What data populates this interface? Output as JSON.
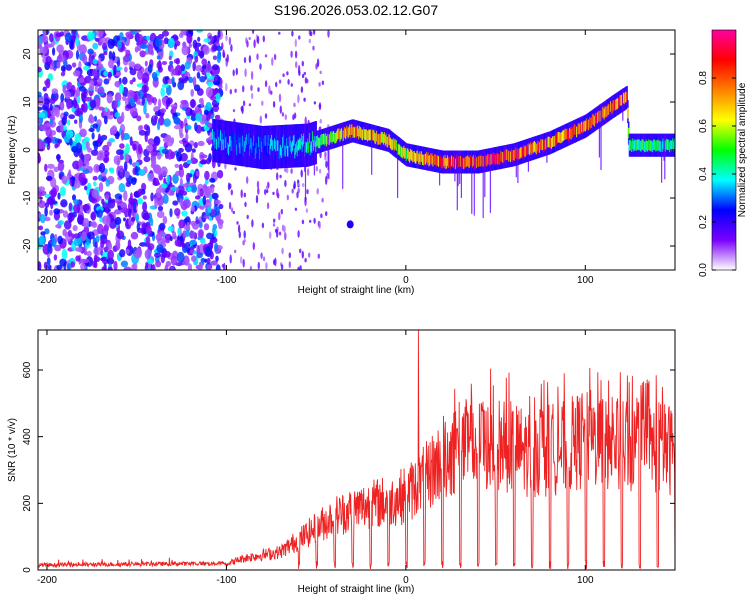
{
  "title": "S196.2026.053.02.12.G07",
  "chart_data": [
    {
      "type": "heatmap",
      "title": "S196.2026.053.02.12.G07",
      "xlabel": "Height of straight line (km)",
      "ylabel": "Frequency (Hz)",
      "xlim": [
        -205,
        150
      ],
      "ylim": [
        -25,
        25
      ],
      "xticks": [
        -200,
        -100,
        0,
        100
      ],
      "yticks": [
        -20,
        -10,
        0,
        10,
        20
      ],
      "colorbar": {
        "label": "Normalized spectral amplitude",
        "range": [
          0,
          1
        ],
        "ticks": [
          0.0,
          0.2,
          0.4,
          0.6,
          0.8
        ],
        "colors": [
          "#ffffff",
          "#7a00ff",
          "#0000ff",
          "#00ffff",
          "#00ff00",
          "#ffff00",
          "#ff8000",
          "#ff0000",
          "#ff00a0"
        ]
      },
      "noise_region_x": [
        -205,
        -103
      ],
      "ridge": {
        "x": [
          -108,
          -80,
          -55,
          -30,
          -10,
          0,
          20,
          40,
          60,
          80,
          100,
          115,
          123,
          124,
          150
        ],
        "y": [
          2,
          0.5,
          1,
          4,
          2,
          -1,
          -2.5,
          -2.5,
          -1,
          1.5,
          5,
          9,
          11,
          1,
          1
        ],
        "peak_amplitude": [
          0.35,
          0.3,
          0.45,
          0.75,
          0.7,
          0.6,
          0.85,
          0.9,
          0.85,
          0.8,
          0.8,
          0.85,
          0.8,
          0.5,
          0.45
        ]
      },
      "outlier": {
        "x": -31,
        "y": -15.5
      }
    },
    {
      "type": "line",
      "xlabel": "Height of straight line (km)",
      "ylabel": "SNR (10 * v/v)",
      "xlim": [
        -205,
        150
      ],
      "ylim": [
        0,
        720
      ],
      "xticks": [
        -200,
        -100,
        0,
        100
      ],
      "yticks": [
        0,
        200,
        400,
        600
      ],
      "color": "#ee2222",
      "envelope": {
        "x": [
          -205,
          -100,
          -90,
          -70,
          -55,
          -40,
          -25,
          -10,
          0,
          10,
          20,
          30,
          50,
          70,
          90,
          100,
          110,
          120,
          130,
          140,
          150
        ],
        "y": [
          15,
          20,
          40,
          60,
          120,
          180,
          210,
          230,
          250,
          300,
          370,
          410,
          420,
          390,
          410,
          440,
          430,
          410,
          400,
          410,
          400
        ]
      },
      "spike": {
        "x": 7,
        "y": 720
      },
      "dropouts": "periodic drops to near 0 every ~10 km from x = -60"
    }
  ]
}
